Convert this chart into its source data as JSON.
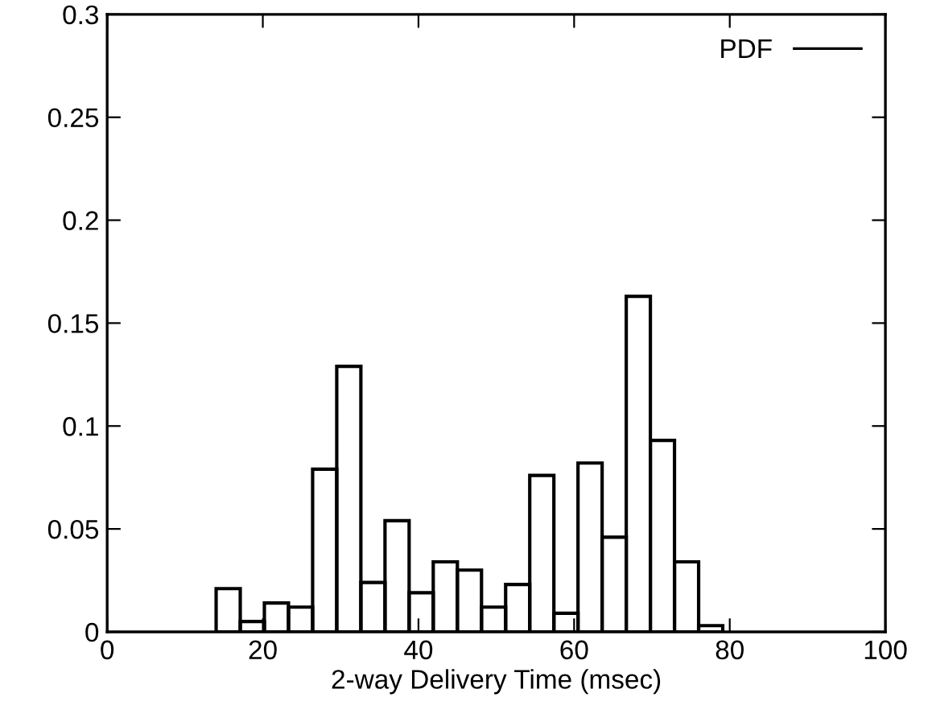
{
  "chart_data": {
    "type": "histogram",
    "xlabel": "2-way Delivery Time (msec)",
    "series": [
      {
        "name": "PDF",
        "color": "#000000",
        "values": [
          0.021,
          0.005,
          0.014,
          0.012,
          0.079,
          0.129,
          0.024,
          0.054,
          0.019,
          0.034,
          0.03,
          0.012,
          0.023,
          0.076,
          0.009,
          0.082,
          0.046,
          0.163,
          0.093,
          0.034,
          0.003
        ]
      }
    ],
    "bins": [
      14.0,
      17.1,
      20.2,
      23.3,
      26.4,
      29.5,
      32.6,
      35.7,
      38.8,
      41.9,
      45.0,
      48.1,
      51.2,
      54.3,
      57.4,
      60.5,
      63.6,
      66.7,
      69.8,
      72.9,
      76.0,
      79.1
    ],
    "xlim": [
      0,
      100
    ],
    "xticks": [
      0,
      20,
      40,
      60,
      80,
      100
    ],
    "ylim": [
      0,
      0.3
    ],
    "yticks": [
      0,
      0.05,
      0.1,
      0.15,
      0.2,
      0.25,
      0.3
    ],
    "legend": "top right",
    "grid": false
  }
}
